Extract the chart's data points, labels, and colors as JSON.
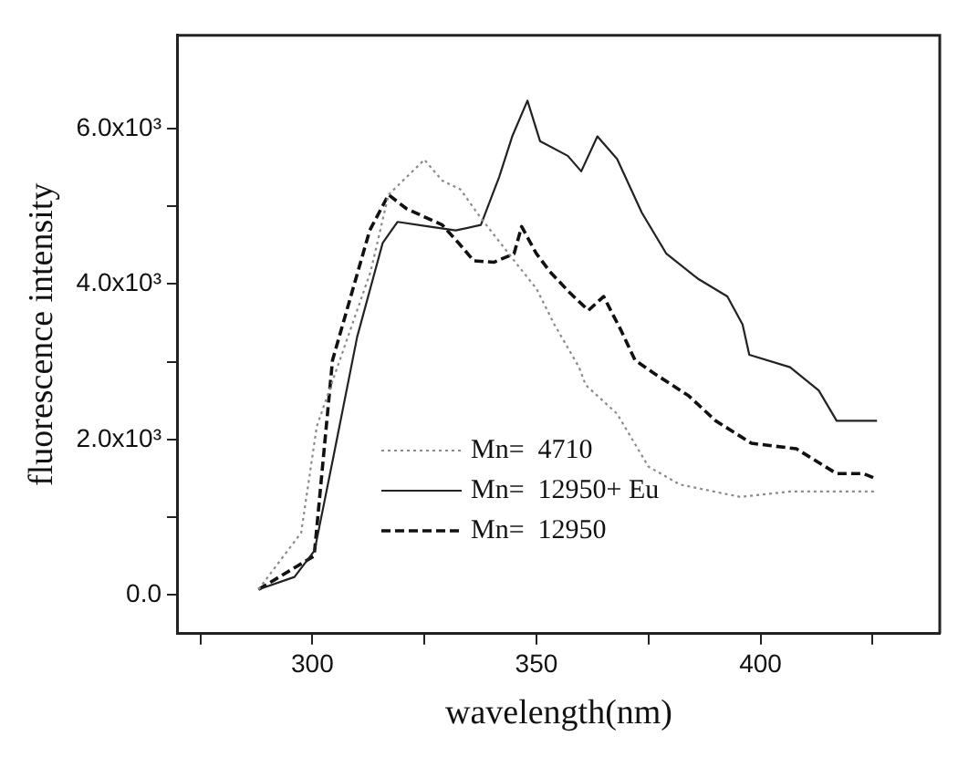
{
  "chart_data": {
    "type": "line",
    "xlabel": "wavelength(nm)",
    "ylabel": "fluorescence intensity",
    "xlim": [
      270,
      440
    ],
    "ylim": [
      -500,
      7200
    ],
    "xticks": [
      {
        "value": 275,
        "label": null
      },
      300,
      {
        "value": 325,
        "label": null
      },
      350,
      {
        "value": 375,
        "label": null
      },
      400,
      {
        "value": 425,
        "label": null
      }
    ],
    "yticks": [
      {
        "value": 0,
        "label": "0.0"
      },
      {
        "value": 1000,
        "label": null
      },
      {
        "value": 2000,
        "label": "2.0x10³"
      },
      {
        "value": 3000,
        "label": null
      },
      {
        "value": 4000,
        "label": "4.0x10³"
      },
      {
        "value": 5000,
        "label": null
      },
      {
        "value": 6000,
        "label": "6.0x10³"
      }
    ],
    "grid": false,
    "legend": "bottom left",
    "marker": "none",
    "series": [
      {
        "name": "Mn=  4710",
        "color": "#8a8a8a",
        "line_style": "dotted",
        "x": [
          288,
          297.5,
          301,
          313,
          317,
          325,
          329,
          333,
          337.6,
          346,
          350,
          354,
          359.5,
          361,
          368,
          375,
          382,
          395.5,
          406.6,
          426
        ],
        "values": [
          70,
          800,
          2170,
          4160,
          5150,
          5600,
          5330,
          5220,
          4850,
          4230,
          3940,
          3480,
          2930,
          2700,
          2330,
          1650,
          1420,
          1260,
          1330,
          1330
        ]
      },
      {
        "name": "Mn=  12950+ Eu",
        "color": "#222222",
        "line_style": "solid",
        "x": [
          288,
          296,
          300.5,
          304.5,
          310,
          315.7,
          319,
          326,
          332,
          337.6,
          341.7,
          344.6,
          348,
          350.8,
          357,
          360,
          363.6,
          368,
          373.5,
          379,
          386,
          392.6,
          396,
          397.5,
          406.6,
          413,
          417,
          426
        ],
        "values": [
          70,
          230,
          570,
          1720,
          3320,
          4530,
          4800,
          4740,
          4690,
          4760,
          5380,
          5900,
          6360,
          5840,
          5650,
          5450,
          5900,
          5610,
          4920,
          4390,
          4070,
          3840,
          3480,
          3090,
          2930,
          2630,
          2240,
          2240
        ]
      },
      {
        "name": "Mn=  12950",
        "color": "#111111",
        "line_style": "dashed",
        "x": [
          288,
          300.4,
          304.5,
          312.8,
          317,
          321,
          329,
          332.6,
          336,
          340.5,
          345,
          346.7,
          350,
          353,
          357.4,
          361.6,
          365,
          369,
          372,
          376,
          384,
          390,
          398,
          408,
          417,
          423,
          426
        ],
        "values": [
          70,
          500,
          3020,
          4690,
          5150,
          4970,
          4760,
          4530,
          4300,
          4280,
          4390,
          4740,
          4390,
          4160,
          3890,
          3660,
          3840,
          3390,
          3020,
          2860,
          2560,
          2240,
          1950,
          1880,
          1560,
          1560,
          1490
        ]
      }
    ]
  }
}
